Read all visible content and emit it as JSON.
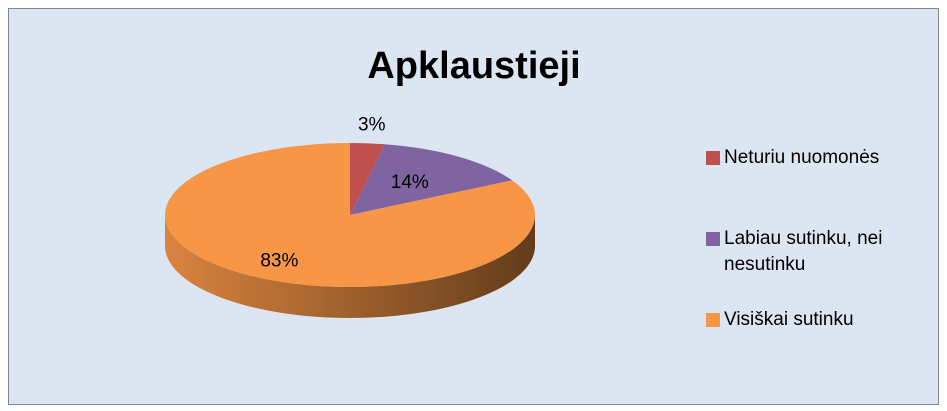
{
  "chart_data": {
    "type": "pie",
    "title": "Apklaustieji",
    "categories": [
      "Neturiu nuomonės",
      "Labiau sutinku, nei nesutinku",
      "Visiškai sutinku"
    ],
    "values": [
      3,
      14,
      83
    ],
    "value_labels": [
      "3%",
      "14%",
      "83%"
    ],
    "colors": [
      "#c0504d",
      "#8064a2",
      "#f79646"
    ],
    "legend": "right"
  }
}
